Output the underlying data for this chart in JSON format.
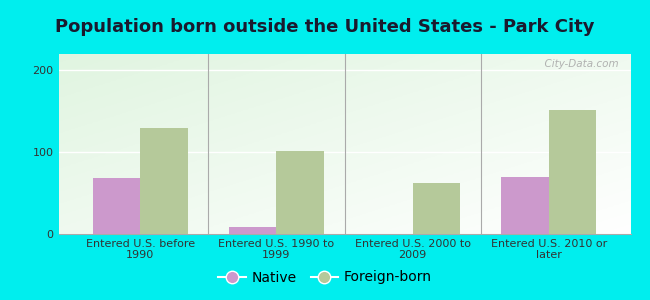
{
  "title": "Population born outside the United States - Park City",
  "categories": [
    "Entered U.S. before\n1990",
    "Entered U.S. 1990 to\n1999",
    "Entered U.S. 2000 to\n2009",
    "Entered U.S. 2010 or\nlater"
  ],
  "native_values": [
    68,
    8,
    0,
    70
  ],
  "foreign_values": [
    130,
    102,
    62,
    152
  ],
  "native_color": "#cc99cc",
  "foreign_color": "#b5c99a",
  "bg_outer": "#00eeee",
  "ylim": [
    0,
    220
  ],
  "yticks": [
    0,
    100,
    200
  ],
  "bar_width": 0.35,
  "title_fontsize": 13,
  "tick_fontsize": 8,
  "legend_fontsize": 10,
  "watermark": "  City-Data.com"
}
